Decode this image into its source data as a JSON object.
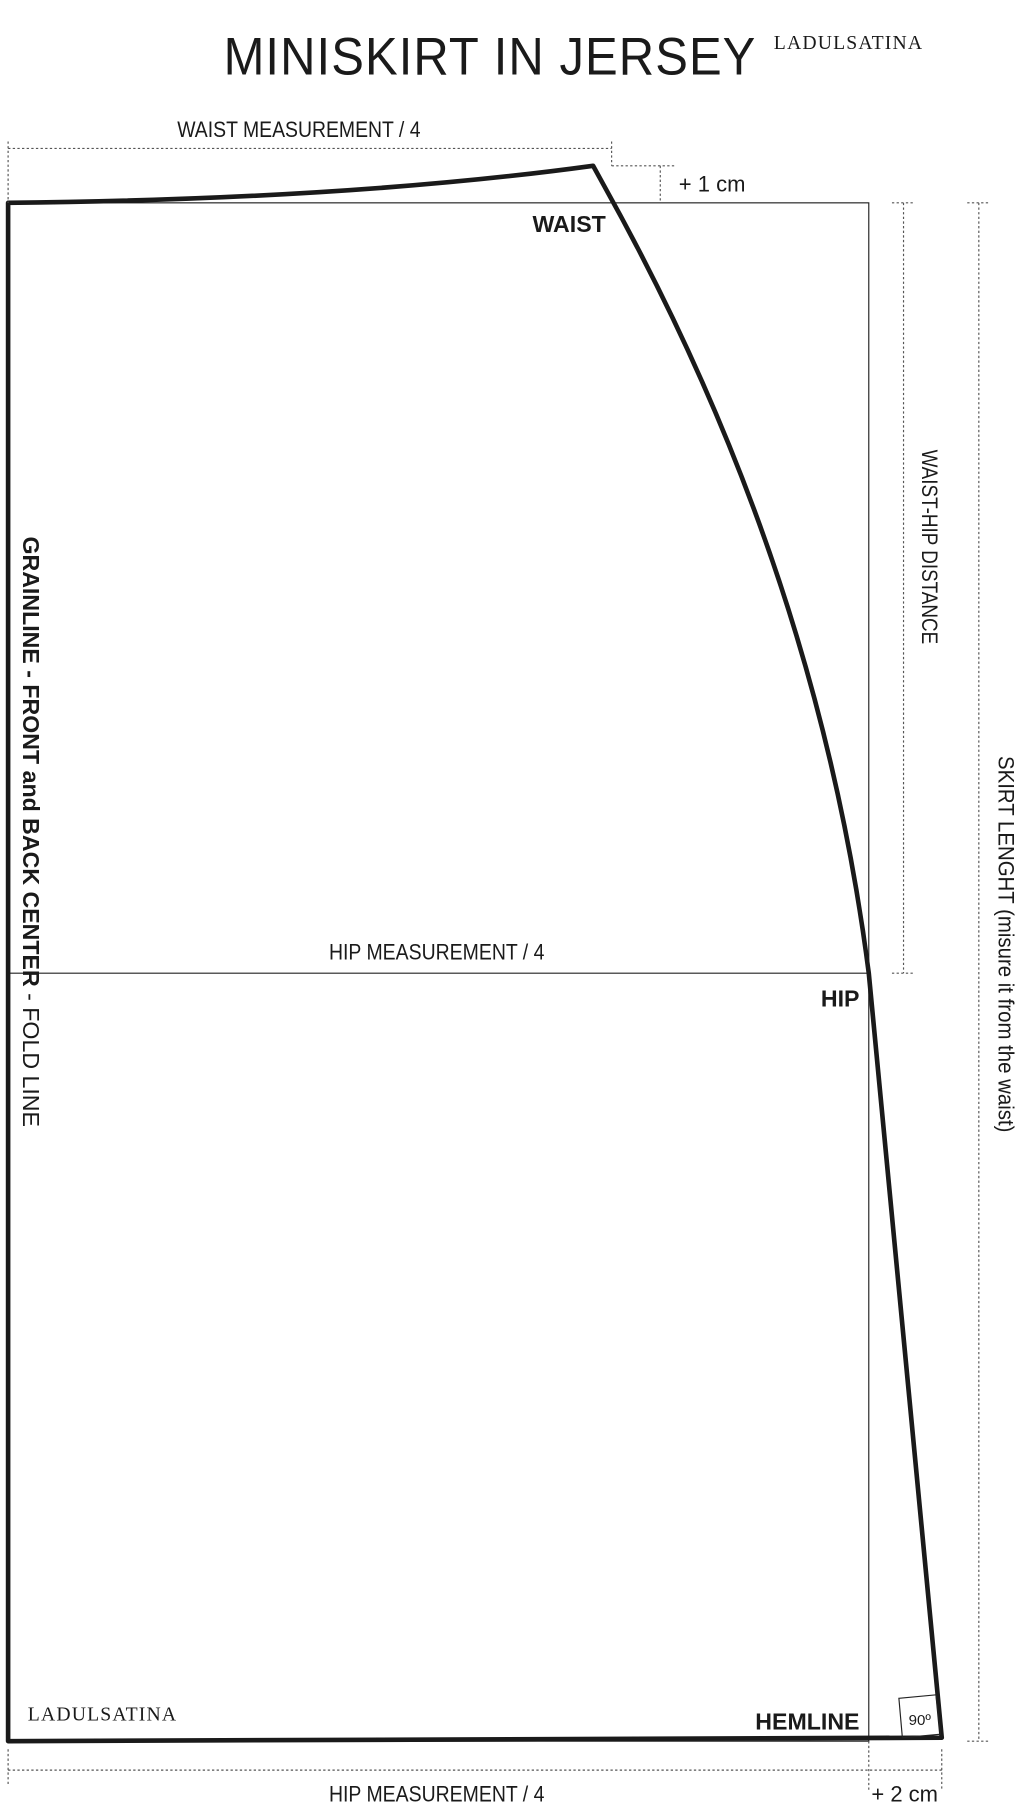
{
  "header": {
    "title": "MINISKIRT IN JERSEY",
    "brand": "LADULSATINA"
  },
  "labels": {
    "waist_measurement": "WAIST MEASUREMENT / 4",
    "plus_1cm": "+ 1 cm",
    "waist": "WAIST",
    "waist_hip_distance": "WAIST-HIP DISTANCE",
    "skirt_length": "SKIRT LENGHT (misure it from the waist)",
    "grainline": "GRAINLINE - FRONT and BACK CENTER",
    "fold_line": " - FOLD LINE",
    "hip_measurement_mid": "HIP MEASUREMENT / 4",
    "hip": "HIP",
    "hemline": "HEMLINE",
    "right_angle": "90º",
    "hip_measurement_bottom": "HIP MEASUREMENT / 4",
    "plus_2cm": "+ 2 cm",
    "brand_bottom": "LADULSATINA"
  }
}
